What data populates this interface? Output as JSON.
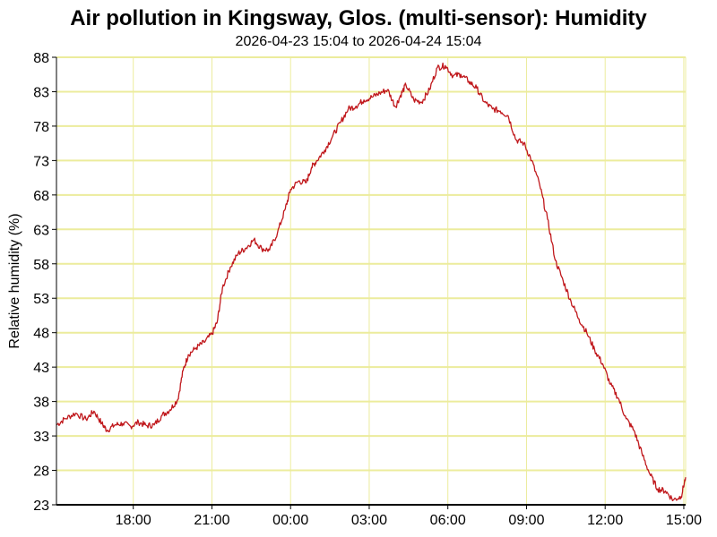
{
  "colors": {
    "background": "#ffffff",
    "grid": "#ecec9c",
    "line": "#c0181c",
    "axis": "#000000"
  },
  "chart_data": {
    "type": "line",
    "title": "Air pollution in Kingsway, Glos. (multi-sensor): Humidity",
    "subtitle": "2026-04-23 15:04 to 2026-04-24 15:04",
    "xlabel": "",
    "ylabel": "Relative humidity (%)",
    "ylim": [
      23,
      88
    ],
    "xlim": [
      15.07,
      39.07
    ],
    "x_unit": "hours since 2026-04-23 00:00",
    "grid": true,
    "legend": "none",
    "y_ticks": [
      {
        "value": 23,
        "label": "23"
      },
      {
        "value": 28,
        "label": "28"
      },
      {
        "value": 33,
        "label": "33"
      },
      {
        "value": 38,
        "label": "38"
      },
      {
        "value": 43,
        "label": "43"
      },
      {
        "value": 48,
        "label": "48"
      },
      {
        "value": 53,
        "label": "53"
      },
      {
        "value": 58,
        "label": "58"
      },
      {
        "value": 63,
        "label": "63"
      },
      {
        "value": 68,
        "label": "68"
      },
      {
        "value": 73,
        "label": "73"
      },
      {
        "value": 78,
        "label": "78"
      },
      {
        "value": 83,
        "label": "83"
      },
      {
        "value": 88,
        "label": "88"
      }
    ],
    "x_ticks": [
      {
        "value": 18,
        "label": "18:00"
      },
      {
        "value": 21,
        "label": "21:00"
      },
      {
        "value": 24,
        "label": "00:00"
      },
      {
        "value": 27,
        "label": "03:00"
      },
      {
        "value": 30,
        "label": "06:00"
      },
      {
        "value": 33,
        "label": "09:00"
      },
      {
        "value": 36,
        "label": "12:00"
      },
      {
        "value": 39,
        "label": "15:00"
      }
    ],
    "series": [
      {
        "x": [
          15.07,
          15.4,
          15.8,
          16.2,
          16.5,
          16.8,
          17.0,
          17.3,
          17.6,
          17.9,
          18.2,
          18.5,
          18.8,
          19.1,
          19.4,
          19.7,
          19.9,
          20.1,
          20.4,
          20.7,
          21.0,
          21.2,
          21.4,
          21.7,
          22.0,
          22.3,
          22.6,
          22.9,
          23.2,
          23.5,
          23.8,
          24.0,
          24.3,
          24.6,
          24.8,
          25.0,
          25.3,
          25.6,
          25.9,
          26.2,
          26.5,
          26.8,
          27.1,
          27.4,
          27.7,
          28.0,
          28.2,
          28.4,
          28.7,
          29.0,
          29.3,
          29.6,
          29.9,
          30.2,
          30.5,
          30.8,
          31.1,
          31.4,
          31.7,
          32.0,
          32.3,
          32.6,
          32.9,
          33.2,
          33.5,
          33.8,
          34.1,
          34.4,
          34.7,
          35.0,
          35.3,
          35.6,
          35.9,
          36.2,
          36.5,
          36.8,
          37.1,
          37.4,
          37.7,
          38.0,
          38.3,
          38.6,
          38.9,
          39.07
        ],
        "y": [
          34.6,
          35.5,
          36.3,
          35.4,
          36.6,
          34.8,
          33.8,
          34.6,
          34.8,
          34.4,
          35.0,
          34.5,
          34.6,
          36.0,
          36.8,
          38.3,
          42.5,
          44.8,
          45.8,
          46.6,
          47.8,
          49.5,
          54.5,
          57.5,
          59.5,
          60.3,
          61.5,
          60.2,
          60.0,
          62.5,
          66.0,
          68.8,
          70.0,
          69.8,
          72.0,
          73.0,
          74.5,
          76.5,
          78.5,
          80.5,
          80.9,
          81.8,
          82.2,
          82.8,
          83.3,
          80.8,
          82.5,
          84.0,
          81.8,
          81.5,
          83.3,
          86.5,
          86.8,
          85.3,
          85.5,
          84.5,
          83.5,
          81.5,
          80.5,
          80.2,
          79.5,
          76.0,
          75.5,
          73.0,
          69.5,
          64.5,
          58.5,
          55.5,
          52.5,
          50.0,
          48.0,
          45.5,
          43.5,
          40.5,
          38.5,
          35.5,
          33.8,
          30.5,
          27.5,
          25.3,
          25.0,
          23.7,
          24.2,
          27.0
        ]
      }
    ]
  }
}
